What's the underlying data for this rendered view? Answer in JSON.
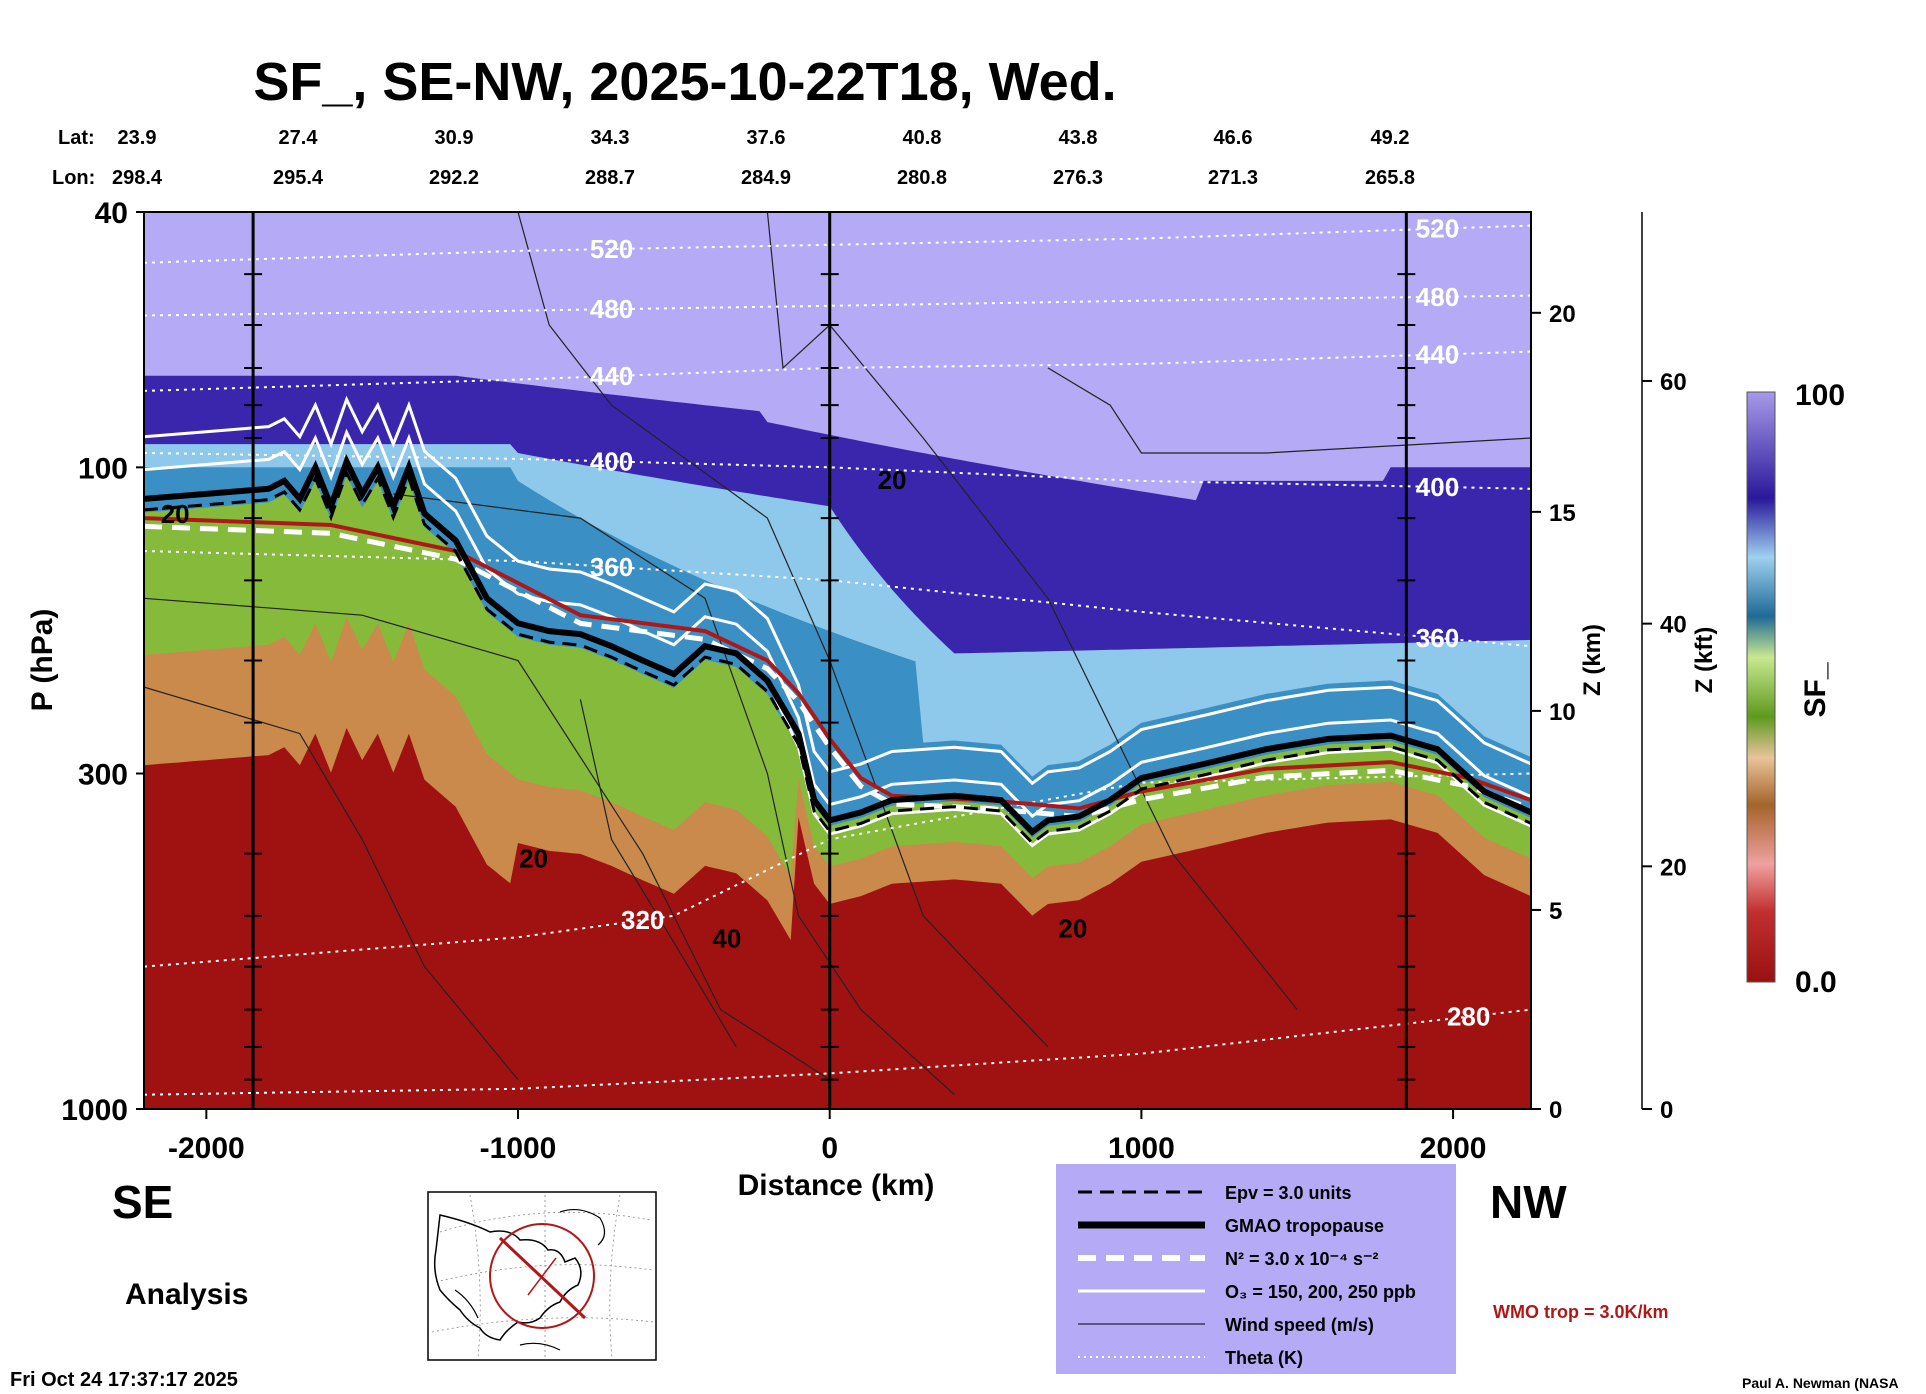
{
  "title": "SF_, SE-NW, 2025-10-22T18, Wed.",
  "header": {
    "lat_label": "Lat:",
    "lon_label": "Lon:",
    "lat": [
      "23.9",
      "27.4",
      "30.9",
      "34.3",
      "37.6",
      "40.8",
      "43.8",
      "46.6",
      "49.2"
    ],
    "lon": [
      "298.4",
      "295.4",
      "292.2",
      "288.7",
      "284.9",
      "280.8",
      "276.3",
      "271.3",
      "265.8"
    ]
  },
  "chart_data": {
    "type": "heatmap",
    "title": "SF_, SE-NW, 2025-10-22T18, Wed.",
    "xlabel": "Distance (km)",
    "ylabel": "P (hPa)",
    "xlim": [
      -2200,
      2250
    ],
    "ylim": [
      1000,
      40
    ],
    "y_scale": "log",
    "x_ticks": [
      "-2000",
      "-1000",
      "0",
      "1000",
      "2000"
    ],
    "y_ticks": [
      "40",
      "100",
      "300",
      "1000"
    ],
    "z_km_label": "Z (km)",
    "z_km_ticks": [
      "0",
      "5",
      "10",
      "15",
      "20"
    ],
    "z_kft_label": "Z (kft)",
    "z_kft_ticks": [
      "0",
      "20",
      "40",
      "60"
    ],
    "colorbar": {
      "label": "SF_",
      "min_label": "0.0",
      "max_label": "100",
      "min": 0,
      "max": 100
    },
    "region_left": "SE",
    "region_right": "NW",
    "tropopause_gmao": [
      {
        "x": -2200,
        "p": 112
      },
      {
        "x": -2000,
        "p": 110
      },
      {
        "x": -1800,
        "p": 108
      },
      {
        "x": -1750,
        "p": 105
      },
      {
        "x": -1700,
        "p": 112
      },
      {
        "x": -1650,
        "p": 100
      },
      {
        "x": -1600,
        "p": 115
      },
      {
        "x": -1550,
        "p": 98
      },
      {
        "x": -1500,
        "p": 110
      },
      {
        "x": -1450,
        "p": 100
      },
      {
        "x": -1400,
        "p": 115
      },
      {
        "x": -1350,
        "p": 100
      },
      {
        "x": -1300,
        "p": 118
      },
      {
        "x": -1200,
        "p": 130
      },
      {
        "x": -1100,
        "p": 160
      },
      {
        "x": -1000,
        "p": 175
      },
      {
        "x": -900,
        "p": 180
      },
      {
        "x": -800,
        "p": 182
      },
      {
        "x": -700,
        "p": 190
      },
      {
        "x": -600,
        "p": 200
      },
      {
        "x": -500,
        "p": 210
      },
      {
        "x": -400,
        "p": 190
      },
      {
        "x": -300,
        "p": 195
      },
      {
        "x": -200,
        "p": 215
      },
      {
        "x": -100,
        "p": 260
      },
      {
        "x": -50,
        "p": 330
      },
      {
        "x": 0,
        "p": 355
      },
      {
        "x": 100,
        "p": 345
      },
      {
        "x": 200,
        "p": 330
      },
      {
        "x": 400,
        "p": 325
      },
      {
        "x": 550,
        "p": 330
      },
      {
        "x": 650,
        "p": 370
      },
      {
        "x": 700,
        "p": 355
      },
      {
        "x": 800,
        "p": 350
      },
      {
        "x": 900,
        "p": 330
      },
      {
        "x": 1000,
        "p": 305
      },
      {
        "x": 1200,
        "p": 290
      },
      {
        "x": 1400,
        "p": 275
      },
      {
        "x": 1600,
        "p": 265
      },
      {
        "x": 1800,
        "p": 262
      },
      {
        "x": 1950,
        "p": 275
      },
      {
        "x": 2100,
        "p": 320
      },
      {
        "x": 2250,
        "p": 345
      }
    ],
    "wmo_tropopause": [
      {
        "x": -2200,
        "p": 120
      },
      {
        "x": -1600,
        "p": 123
      },
      {
        "x": -1200,
        "p": 135
      },
      {
        "x": -800,
        "p": 170
      },
      {
        "x": -400,
        "p": 180
      },
      {
        "x": -200,
        "p": 200
      },
      {
        "x": -100,
        "p": 225
      },
      {
        "x": 0,
        "p": 265
      },
      {
        "x": 100,
        "p": 305
      },
      {
        "x": 200,
        "p": 325
      },
      {
        "x": 500,
        "p": 330
      },
      {
        "x": 800,
        "p": 340
      },
      {
        "x": 1000,
        "p": 320
      },
      {
        "x": 1400,
        "p": 295
      },
      {
        "x": 1800,
        "p": 288
      },
      {
        "x": 2050,
        "p": 305
      },
      {
        "x": 2250,
        "p": 330
      }
    ],
    "theta_contours": [
      {
        "level": "520",
        "x": [
          -2200,
          -1000,
          0,
          1000,
          2250
        ],
        "p": [
          48,
          46,
          45,
          44,
          42
        ]
      },
      {
        "level": "480",
        "x": [
          -2200,
          -1000,
          0,
          1000,
          2250
        ],
        "p": [
          58,
          57,
          56,
          55,
          54
        ]
      },
      {
        "level": "440",
        "x": [
          -2200,
          -1000,
          0,
          1000,
          2250
        ],
        "p": [
          76,
          73,
          70,
          69,
          66
        ]
      },
      {
        "level": "400",
        "x": [
          -2200,
          -1000,
          0,
          1000,
          2250
        ],
        "p": [
          95,
          97,
          100,
          105,
          108
        ]
      },
      {
        "level": "360",
        "x": [
          -2200,
          -1000,
          0,
          1000,
          2250
        ],
        "p": [
          135,
          140,
          150,
          168,
          190
        ]
      },
      {
        "level": "320",
        "x": [
          -2200,
          -1000,
          -500,
          0,
          1000,
          2250
        ],
        "p": [
          600,
          540,
          500,
          380,
          310,
          300
        ]
      },
      {
        "level": "280",
        "x": [
          -2200,
          -1000,
          0,
          1000,
          2250
        ],
        "p": [
          950,
          930,
          880,
          820,
          700
        ]
      }
    ],
    "ozone_ppb": [
      "150",
      "200",
      "250"
    ],
    "wind_speed_labels": [
      "20",
      "20",
      "40",
      "20",
      "20"
    ]
  },
  "legend": {
    "items": [
      {
        "style": "dashed-black",
        "label": "Epv = 3.0 units"
      },
      {
        "style": "thick-black",
        "label": "GMAO tropopause"
      },
      {
        "style": "dashed-white",
        "label": "N² = 3.0 x 10⁻⁴ s⁻²"
      },
      {
        "style": "solid-white",
        "label": "O₃ = 150, 200, 250 ppb"
      },
      {
        "style": "thin-black",
        "label": "Wind speed (m/s)"
      },
      {
        "style": "dotted-white",
        "label": "Theta (K)"
      }
    ],
    "wmo_note": "WMO trop = 3.0K/km"
  },
  "footer": {
    "analysis": "Analysis",
    "timestamp": "Fri Oct 24 17:37:17 2025",
    "credit": "Paul A. Newman (NASA"
  },
  "colors": {
    "lavender": "#b3a8f5",
    "stratosphere_dark": "#3521a8",
    "blue": "#2f86c0",
    "green": "#7bb32e",
    "tan": "#d0955a",
    "red": "#a01414",
    "wmo": "#b01818"
  }
}
